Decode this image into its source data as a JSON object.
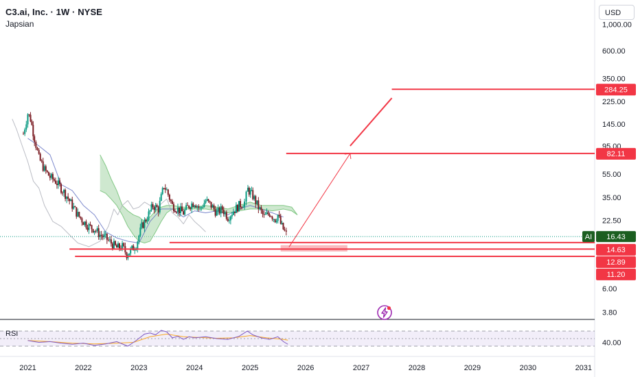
{
  "header": {
    "title": "C3.ai, Inc. · 1W · NYSE",
    "author": "Japsian"
  },
  "currency_button": "USD",
  "rsi_pane": {
    "label": "RSI",
    "tick_label": "40.00"
  },
  "colors": {
    "up": "#089981",
    "down": "#f23645",
    "annotation": "#f23645",
    "cloud": "#a5d6a7",
    "rsi_line": "#7e57c2",
    "rsi_ma": "#f9a825",
    "baseline": "#b2b5be",
    "ticker_badge": "#1b5e20"
  },
  "chart_data": {
    "type": "candlestick",
    "title": "C3.ai, Inc. · 1W · NYSE",
    "y_scale": "log",
    "ylim": [
      3.3,
      1300
    ],
    "xlim": [
      2020.5,
      2031.2
    ],
    "x_ticks": [
      "2021",
      "2022",
      "2023",
      "2024",
      "2025",
      "2026",
      "2027",
      "2028",
      "2029",
      "2030",
      "2031"
    ],
    "y_ticks": [
      "1,000.00",
      "600.00",
      "350.00",
      "225.00",
      "145.00",
      "95.00",
      "55.00",
      "35.00",
      "22.50",
      "6.00",
      "3.80"
    ],
    "current_price": {
      "symbol": "AI",
      "value": "16.43"
    },
    "price_labels": [
      {
        "value": "284.25"
      },
      {
        "value": "82.11"
      },
      {
        "value": "14.63"
      },
      {
        "value": "12.89"
      },
      {
        "value": "11.20"
      }
    ],
    "horizontal_lines": [
      {
        "y": 284.25,
        "x_start": 2027.55
      },
      {
        "y": 82.11,
        "x_start": 2025.65
      },
      {
        "y": 14.63,
        "x_start": 2023.55
      },
      {
        "y": 12.89,
        "x_start": 2021.75
      },
      {
        "y": 11.2,
        "x_start": 2021.85
      }
    ],
    "projection_arrow": [
      {
        "x": 2025.7,
        "y": 13.4
      },
      {
        "x": 2026.8,
        "y": 82
      }
    ],
    "projection_line": [
      {
        "x": 2026.8,
        "y": 95
      },
      {
        "x": 2027.55,
        "y": 240
      }
    ],
    "target_zone": {
      "x_start": 2025.55,
      "x_end": 2026.75,
      "y_low": 12.3,
      "y_high": 13.9
    },
    "price_path": [
      [
        2020.92,
        120
      ],
      [
        2021.0,
        178
      ],
      [
        2021.05,
        160
      ],
      [
        2021.12,
        110
      ],
      [
        2021.2,
        75
      ],
      [
        2021.3,
        60
      ],
      [
        2021.4,
        52
      ],
      [
        2021.5,
        48
      ],
      [
        2021.6,
        42
      ],
      [
        2021.7,
        36
      ],
      [
        2021.8,
        30
      ],
      [
        2021.9,
        25
      ],
      [
        2022.0,
        22
      ],
      [
        2022.1,
        20
      ],
      [
        2022.2,
        19
      ],
      [
        2022.3,
        17
      ],
      [
        2022.4,
        16
      ],
      [
        2022.5,
        14.5
      ],
      [
        2022.6,
        13.2
      ],
      [
        2022.7,
        13.5
      ],
      [
        2022.78,
        11.7
      ],
      [
        2022.85,
        12.5
      ],
      [
        2022.95,
        14
      ],
      [
        2023.05,
        20
      ],
      [
        2023.15,
        24
      ],
      [
        2023.25,
        30
      ],
      [
        2023.35,
        28
      ],
      [
        2023.45,
        44
      ],
      [
        2023.5,
        40
      ],
      [
        2023.6,
        30
      ],
      [
        2023.7,
        28
      ],
      [
        2023.8,
        26
      ],
      [
        2023.9,
        30
      ],
      [
        2024.0,
        32
      ],
      [
        2024.1,
        28
      ],
      [
        2024.2,
        33
      ],
      [
        2024.3,
        30
      ],
      [
        2024.4,
        26
      ],
      [
        2024.5,
        28
      ],
      [
        2024.6,
        24
      ],
      [
        2024.7,
        27
      ],
      [
        2024.8,
        30
      ],
      [
        2024.9,
        32
      ],
      [
        2024.96,
        41
      ],
      [
        2025.05,
        36
      ],
      [
        2025.15,
        29
      ],
      [
        2025.25,
        24
      ],
      [
        2025.35,
        26
      ],
      [
        2025.45,
        23
      ],
      [
        2025.5,
        25
      ],
      [
        2025.55,
        21
      ],
      [
        2025.62,
        18
      ],
      [
        2025.68,
        16.4
      ]
    ],
    "lagging_line": [
      [
        2020.72,
        160
      ],
      [
        2020.8,
        130
      ],
      [
        2020.9,
        95
      ],
      [
        2021.0,
        70
      ],
      [
        2021.1,
        48
      ],
      [
        2021.2,
        42
      ],
      [
        2021.3,
        30
      ],
      [
        2021.45,
        22
      ],
      [
        2021.6,
        20
      ],
      [
        2021.75,
        17
      ],
      [
        2021.9,
        14.5
      ],
      [
        2022.1,
        13.5
      ],
      [
        2022.3,
        15
      ],
      [
        2022.45,
        20
      ],
      [
        2022.55,
        28
      ],
      [
        2022.62,
        25
      ],
      [
        2022.7,
        30
      ],
      [
        2022.8,
        33
      ],
      [
        2022.9,
        28
      ],
      [
        2023.0,
        29
      ],
      [
        2023.1,
        32
      ],
      [
        2023.2,
        30
      ],
      [
        2023.3,
        27
      ],
      [
        2023.4,
        31
      ],
      [
        2023.5,
        34
      ],
      [
        2023.6,
        26
      ],
      [
        2023.7,
        24
      ],
      [
        2023.8,
        21
      ],
      [
        2023.9,
        25
      ],
      [
        2024.0,
        22
      ],
      [
        2024.1,
        20
      ],
      [
        2024.2,
        18
      ]
    ],
    "lead_span_a": [
      [
        2022.3,
        80
      ],
      [
        2022.4,
        65
      ],
      [
        2022.5,
        50
      ],
      [
        2022.6,
        40
      ],
      [
        2022.7,
        30
      ],
      [
        2022.8,
        27
      ],
      [
        2022.9,
        25
      ],
      [
        2023.0,
        24
      ],
      [
        2023.1,
        22
      ],
      [
        2023.2,
        24
      ],
      [
        2023.3,
        27
      ],
      [
        2023.4,
        29
      ],
      [
        2023.5,
        30
      ],
      [
        2023.6,
        30
      ],
      [
        2023.8,
        29
      ],
      [
        2024.0,
        29
      ],
      [
        2024.2,
        30
      ],
      [
        2024.4,
        29
      ],
      [
        2024.6,
        28
      ],
      [
        2024.8,
        30
      ],
      [
        2025.0,
        32
      ],
      [
        2025.2,
        30
      ],
      [
        2025.4,
        30
      ],
      [
        2025.6,
        30
      ],
      [
        2025.75,
        29
      ],
      [
        2025.85,
        25
      ]
    ],
    "lead_span_b": [
      [
        2022.3,
        40
      ],
      [
        2022.4,
        38
      ],
      [
        2022.5,
        34
      ],
      [
        2022.6,
        30
      ],
      [
        2022.7,
        25
      ],
      [
        2022.8,
        20
      ],
      [
        2022.9,
        17
      ],
      [
        2023.0,
        15
      ],
      [
        2023.1,
        14.5
      ],
      [
        2023.2,
        15
      ],
      [
        2023.3,
        18
      ],
      [
        2023.4,
        22
      ],
      [
        2023.5,
        26
      ],
      [
        2023.6,
        28
      ],
      [
        2023.8,
        28
      ],
      [
        2024.0,
        28
      ],
      [
        2024.2,
        28
      ],
      [
        2024.4,
        27
      ],
      [
        2024.6,
        26
      ],
      [
        2024.8,
        27
      ],
      [
        2025.0,
        28
      ],
      [
        2025.2,
        28
      ],
      [
        2025.4,
        27
      ],
      [
        2025.6,
        28
      ],
      [
        2025.75,
        27
      ],
      [
        2025.85,
        25
      ]
    ],
    "kijun_line": [
      [
        2021.0,
        110
      ],
      [
        2021.2,
        95
      ],
      [
        2021.4,
        80
      ],
      [
        2021.6,
        45
      ],
      [
        2021.8,
        40
      ],
      [
        2022.0,
        30
      ],
      [
        2022.2,
        25
      ],
      [
        2022.4,
        18
      ],
      [
        2022.6,
        16
      ],
      [
        2022.8,
        15
      ],
      [
        2023.0,
        14.5
      ],
      [
        2023.2,
        22
      ],
      [
        2023.4,
        28
      ],
      [
        2023.6,
        28
      ],
      [
        2023.8,
        24
      ],
      [
        2024.0,
        27
      ],
      [
        2024.2,
        26
      ],
      [
        2024.4,
        27
      ],
      [
        2024.6,
        25
      ],
      [
        2024.8,
        28
      ],
      [
        2025.0,
        30
      ],
      [
        2025.2,
        28
      ],
      [
        2025.4,
        26
      ],
      [
        2025.6,
        24
      ]
    ],
    "rsi": {
      "ylim": [
        10,
        90
      ],
      "ref_lines": [
        70,
        50,
        30
      ],
      "values": [
        [
          2021.0,
          45
        ],
        [
          2021.2,
          40
        ],
        [
          2021.4,
          42
        ],
        [
          2021.6,
          38
        ],
        [
          2021.8,
          35
        ],
        [
          2022.0,
          38
        ],
        [
          2022.2,
          32
        ],
        [
          2022.4,
          36
        ],
        [
          2022.6,
          42
        ],
        [
          2022.8,
          30
        ],
        [
          2022.95,
          45
        ],
        [
          2023.1,
          62
        ],
        [
          2023.2,
          65
        ],
        [
          2023.3,
          60
        ],
        [
          2023.4,
          72
        ],
        [
          2023.5,
          68
        ],
        [
          2023.6,
          52
        ],
        [
          2023.7,
          56
        ],
        [
          2023.8,
          48
        ],
        [
          2023.9,
          55
        ],
        [
          2024.0,
          52
        ],
        [
          2024.2,
          55
        ],
        [
          2024.4,
          50
        ],
        [
          2024.6,
          48
        ],
        [
          2024.8,
          56
        ],
        [
          2024.95,
          70
        ],
        [
          2025.05,
          60
        ],
        [
          2025.2,
          52
        ],
        [
          2025.35,
          48
        ],
        [
          2025.5,
          55
        ],
        [
          2025.6,
          42
        ],
        [
          2025.68,
          35
        ]
      ],
      "ma": [
        [
          2021.0,
          45
        ],
        [
          2021.4,
          42
        ],
        [
          2021.8,
          38
        ],
        [
          2022.2,
          36
        ],
        [
          2022.6,
          38
        ],
        [
          2022.9,
          40
        ],
        [
          2023.2,
          55
        ],
        [
          2023.5,
          62
        ],
        [
          2023.8,
          55
        ],
        [
          2024.1,
          53
        ],
        [
          2024.4,
          51
        ],
        [
          2024.7,
          52
        ],
        [
          2025.0,
          58
        ],
        [
          2025.3,
          52
        ],
        [
          2025.6,
          48
        ],
        [
          2025.68,
          46
        ]
      ]
    }
  }
}
